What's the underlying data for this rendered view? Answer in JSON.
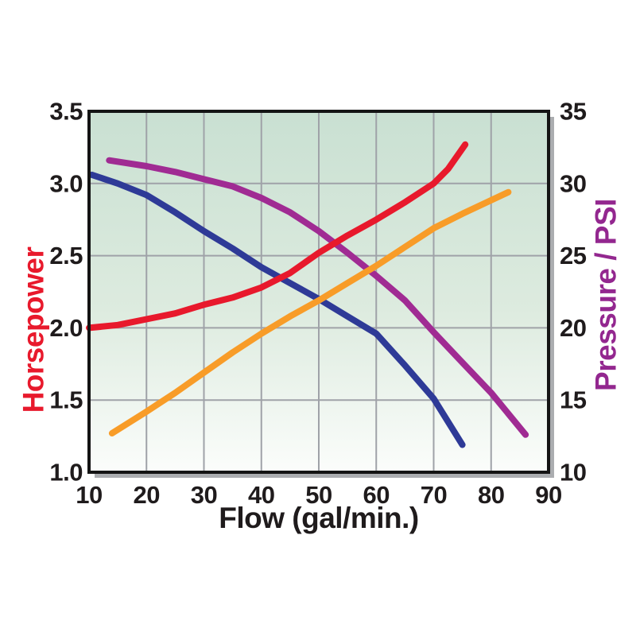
{
  "chart_data": {
    "type": "line",
    "title": "",
    "xlabel": "Flow (gal/min.)",
    "ylabel_left": "Horsepower",
    "ylabel_right": "Pressure / PSI",
    "x_range": [
      10,
      90
    ],
    "x_ticks": [
      "10",
      "20",
      "30",
      "40",
      "50",
      "60",
      "70",
      "80",
      "90"
    ],
    "y_left_range": [
      1.0,
      3.5
    ],
    "y_left_ticks": [
      "3.5",
      "3.0",
      "2.5",
      "2.0",
      "1.5",
      "1.0"
    ],
    "y_right_range": [
      10,
      35
    ],
    "y_right_ticks": [
      "35",
      "30",
      "25",
      "20",
      "15",
      "10"
    ],
    "grid": true,
    "legend": "none",
    "series": [
      {
        "name": "pressure-falling",
        "axis": "right",
        "color": "#a02b93",
        "points": [
          [
            13.5,
            31.6
          ],
          [
            20,
            31.2
          ],
          [
            25,
            30.8
          ],
          [
            30,
            30.3
          ],
          [
            35,
            29.8
          ],
          [
            40,
            29.0
          ],
          [
            45,
            28.0
          ],
          [
            50,
            26.7
          ],
          [
            55,
            25.2
          ],
          [
            60,
            23.6
          ],
          [
            65,
            21.9
          ],
          [
            70,
            19.7
          ],
          [
            75,
            17.6
          ],
          [
            80,
            15.5
          ],
          [
            86,
            12.6
          ]
        ]
      },
      {
        "name": "horsepower-falling",
        "axis": "left",
        "color": "#2e3a97",
        "points": [
          [
            10.5,
            3.06
          ],
          [
            15,
            3.0
          ],
          [
            20,
            2.92
          ],
          [
            25,
            2.8
          ],
          [
            30,
            2.67
          ],
          [
            35,
            2.55
          ],
          [
            40,
            2.42
          ],
          [
            45,
            2.31
          ],
          [
            50,
            2.2
          ],
          [
            55,
            2.08
          ],
          [
            60,
            1.96
          ],
          [
            65,
            1.74
          ],
          [
            70,
            1.51
          ],
          [
            75,
            1.19
          ]
        ]
      },
      {
        "name": "pressure-rising",
        "axis": "right",
        "color": "#f89c28",
        "points": [
          [
            14,
            12.7
          ],
          [
            20,
            14.2
          ],
          [
            25,
            15.5
          ],
          [
            30,
            16.9
          ],
          [
            35,
            18.3
          ],
          [
            40,
            19.6
          ],
          [
            45,
            20.8
          ],
          [
            50,
            21.9
          ],
          [
            55,
            23.1
          ],
          [
            60,
            24.3
          ],
          [
            65,
            25.6
          ],
          [
            70,
            26.9
          ],
          [
            75,
            27.9
          ],
          [
            83,
            29.4
          ]
        ]
      },
      {
        "name": "horsepower-rising",
        "axis": "left",
        "color": "#e8192c",
        "points": [
          [
            10,
            2.0
          ],
          [
            15,
            2.02
          ],
          [
            20,
            2.06
          ],
          [
            25,
            2.1
          ],
          [
            30,
            2.16
          ],
          [
            35,
            2.21
          ],
          [
            40,
            2.28
          ],
          [
            45,
            2.38
          ],
          [
            50,
            2.52
          ],
          [
            55,
            2.64
          ],
          [
            60,
            2.75
          ],
          [
            65,
            2.87
          ],
          [
            70,
            3.0
          ],
          [
            72.5,
            3.1
          ],
          [
            75.5,
            3.27
          ]
        ]
      }
    ],
    "colors": {
      "horsepower_axis": "#e8192c",
      "pressure_axis": "#93278f",
      "text": "#1f1b1c",
      "grid": "#9fa2a8",
      "frame": "#141414",
      "shadow": "#abadb0",
      "bg_top": "#c9e0d2",
      "bg_mid": "#ddebdf",
      "bg_bottom": "#fbfdfb"
    }
  }
}
